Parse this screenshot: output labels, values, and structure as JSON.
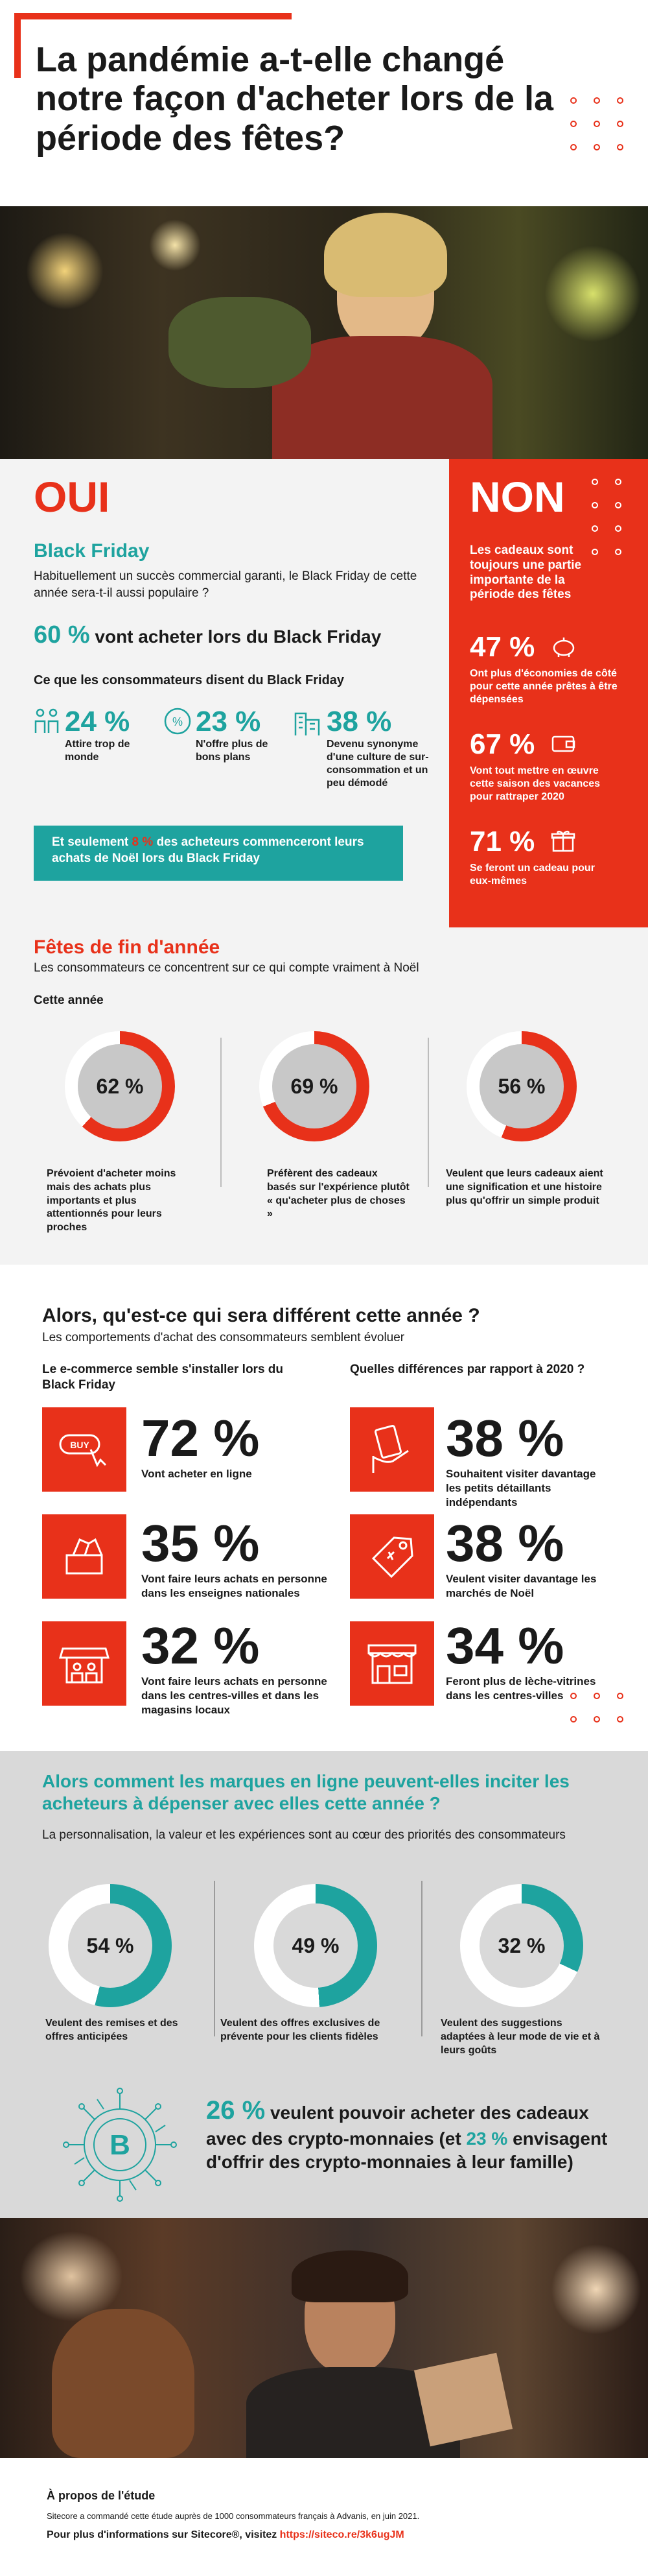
{
  "header": {
    "title": "La pandémie a-t-elle changé notre façon d'acheter lors de la période des fêtes?"
  },
  "oui": {
    "title": "OUI",
    "bf_title": "Black Friday",
    "bf_text": "Habituellement un succès commercial garanti, le Black Friday de cette année sera-t-il aussi populaire ?",
    "bf_pct": "60 %",
    "bf_pct_text": "vont acheter lors du Black Friday",
    "say_title": "Ce que les consommateurs disent du Black Friday",
    "stats": [
      {
        "pct": "24 %",
        "text": "Attire trop de monde",
        "icon": "crowd-icon"
      },
      {
        "pct": "23 %",
        "text": "N'offre plus de bons plans",
        "icon": "discount-icon"
      },
      {
        "pct": "38 %",
        "text": "Devenu synonyme d'une culture de sur-consommation et un peu démodé",
        "icon": "buildings-icon"
      }
    ],
    "banner_pre": "Et seulement ",
    "banner_pct": "8 %",
    "banner_post": " des acheteurs commenceront leurs achats de Noël lors du Black Friday"
  },
  "non": {
    "title": "NON",
    "intro": "Les cadeaux sont toujours une partie importante de la période des fêtes",
    "stats": [
      {
        "pct": "47 %",
        "text": "Ont plus d'économies de côté pour cette année prêtes à être dépensées",
        "icon": "piggy-bank-icon"
      },
      {
        "pct": "67 %",
        "text": "Vont tout mettre en œuvre cette saison des vacances pour rattraper 2020",
        "icon": "wallet-icon"
      },
      {
        "pct": "71 %",
        "text": "Se feront un cadeau pour eux-mêmes",
        "icon": "gift-icon"
      }
    ]
  },
  "fetes": {
    "title": "Fêtes de fin d'année",
    "subtitle": "Les consommateurs ce concentrent sur ce qui compte vraiment à Noël",
    "label": "Cette année",
    "donuts": [
      {
        "pct": "62 %",
        "value": 62,
        "text": "Prévoient d'acheter moins mais des achats plus importants et plus attentionnés pour leurs proches"
      },
      {
        "pct": "69 %",
        "value": 69,
        "text": "Préfèrent des cadeaux basés sur l'expérience plutôt « qu'acheter plus de choses »"
      },
      {
        "pct": "56 %",
        "value": 56,
        "text": "Veulent que leurs cadeaux aient une signification et une histoire plus qu'offrir un simple produit"
      }
    ]
  },
  "diff": {
    "title": "Alors, qu'est-ce qui sera différent cette année ?",
    "subtitle": "Les comportements d'achat des consommateurs semblent évoluer",
    "left_title": "Le e-commerce semble s'installer lors du Black Friday",
    "right_title": "Quelles différences par rapport à 2020 ?",
    "left": [
      {
        "pct": "72 %",
        "text": "Vont acheter en ligne",
        "icon": "buy-button-icon"
      },
      {
        "pct": "35 %",
        "text": "Vont faire leurs achats en personne dans les enseignes nationales",
        "icon": "shopping-box-icon"
      },
      {
        "pct": "32 %",
        "text": "Vont faire leurs achats en personne dans les centres-villes et dans les magasins locaux",
        "icon": "local-shop-icon"
      }
    ],
    "right": [
      {
        "pct": "38 %",
        "text": "Souhaitent visiter davantage les petits détaillants indépendants",
        "icon": "money-hand-icon"
      },
      {
        "pct": "38 %",
        "text": "Veulent visiter davantage les marchés de Noël",
        "icon": "price-tag-icon"
      },
      {
        "pct": "34 %",
        "text": "Feront plus de lèche-vitrines dans les centres-villes",
        "icon": "storefront-icon"
      }
    ]
  },
  "brands": {
    "title": "Alors comment les marques en ligne peuvent-elles inciter les acheteurs à dépenser avec elles cette année ?",
    "subtitle": "La personnalisation, la valeur et les expériences sont au cœur des priorités des consommateurs",
    "donuts": [
      {
        "pct": "54 %",
        "value": 54,
        "text": "Veulent des remises et des offres anticipées"
      },
      {
        "pct": "49 %",
        "value": 49,
        "text": "Veulent des offres exclusives de prévente pour les clients fidèles"
      },
      {
        "pct": "32 %",
        "value": 32,
        "text": "Veulent des suggestions adaptées à leur mode de vie et à leurs goûts"
      }
    ],
    "crypto_pct": "26 %",
    "crypto_mid": " veulent pouvoir acheter des cadeaux avec des crypto-monnaies (et ",
    "crypto_pct2": "23 %",
    "crypto_end": " envisagent d'offrir des crypto-monnaies à leur famille)"
  },
  "about": {
    "title": "À propos de l'étude",
    "text": "Sitecore a commandé cette étude auprès de 1000 consommateurs français à Advanis, en juin 2021.",
    "more_pre": "Pour plus d'informations sur Sitecore®, visitez ",
    "link": "https://siteco.re/3k6ugJM"
  },
  "colors": {
    "accent": "#e8311a",
    "teal": "#1ea39f",
    "grey": "#c8c8c8"
  }
}
